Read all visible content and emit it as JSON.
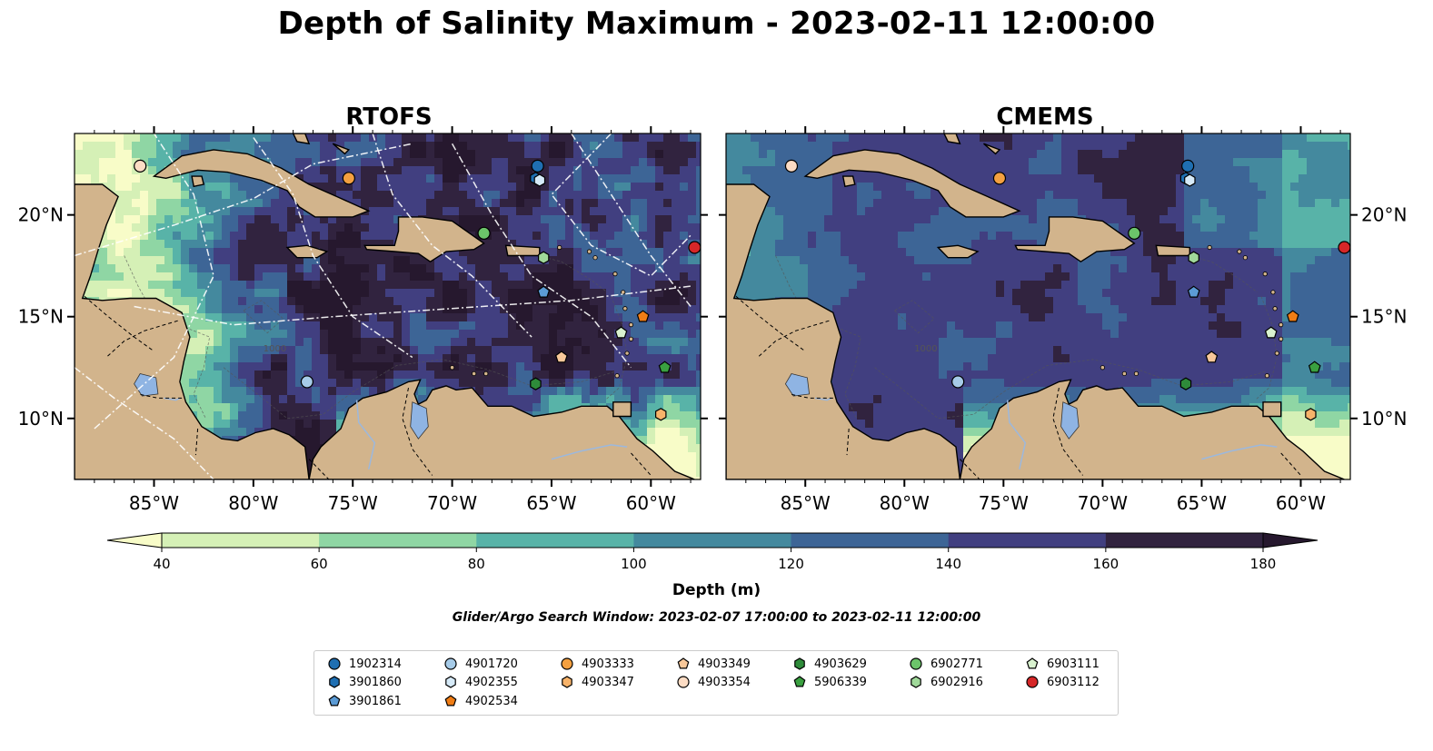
{
  "title": "Depth of Salinity Maximum - 2023-02-11 12:00:00",
  "panels": [
    {
      "title": "RTOFS"
    },
    {
      "title": "CMEMS"
    }
  ],
  "map": {
    "lon_range": [
      -89,
      -57.5
    ],
    "lat_range": [
      7,
      24
    ],
    "lon_ticks": [
      {
        "value": -85,
        "label": "85°W"
      },
      {
        "value": -80,
        "label": "80°W"
      },
      {
        "value": -75,
        "label": "75°W"
      },
      {
        "value": -70,
        "label": "70°W"
      },
      {
        "value": -65,
        "label": "65°W"
      },
      {
        "value": -60,
        "label": "60°W"
      }
    ],
    "lat_ticks": [
      {
        "value": 10,
        "label": "10°N"
      },
      {
        "value": 15,
        "label": "15°N"
      },
      {
        "value": 20,
        "label": "20°N"
      }
    ],
    "contour_label": "1000",
    "land_color": "#d2b48c",
    "lake_color": "#8fb4e3"
  },
  "colorbar": {
    "label": "Depth (m)",
    "ticks": [
      40,
      60,
      80,
      100,
      120,
      140,
      160,
      180
    ],
    "colors": [
      "#f8fcc8",
      "#d5f0b6",
      "#8fd6a4",
      "#58b3a8",
      "#44899e",
      "#3d6596",
      "#413f80",
      "#31233f",
      "#26182e"
    ]
  },
  "search_window": "Glider/Argo Search Window: 2023-02-07 17:00:00 to 2023-02-11 12:00:00",
  "floats": [
    {
      "id": "1902314",
      "color": "#1f6fb2",
      "shape": "circle",
      "lon": -65.7,
      "lat": 22.4
    },
    {
      "id": "3901860",
      "color": "#1f6fb2",
      "shape": "hexagon",
      "lon": -65.8,
      "lat": 21.8
    },
    {
      "id": "3901861",
      "color": "#5b9bd5",
      "shape": "pentagon",
      "lon": -65.4,
      "lat": 16.2
    },
    {
      "id": "4901720",
      "color": "#a6cbe8",
      "shape": "circle",
      "lon": -77.3,
      "lat": 11.8
    },
    {
      "id": "4902355",
      "color": "#d6eaf8",
      "shape": "hexagon",
      "lon": -65.6,
      "lat": 21.7
    },
    {
      "id": "4902534",
      "color": "#f07d15",
      "shape": "pentagon",
      "lon": -60.4,
      "lat": 15.0
    },
    {
      "id": "4903333",
      "color": "#f4a040",
      "shape": "circle",
      "lon": -75.2,
      "lat": 21.8
    },
    {
      "id": "4903347",
      "color": "#f7b36a",
      "shape": "hexagon",
      "lon": -59.5,
      "lat": 10.2
    },
    {
      "id": "4903349",
      "color": "#f8c89a",
      "shape": "pentagon",
      "lon": -64.5,
      "lat": 13.0
    },
    {
      "id": "4903354",
      "color": "#fcdcc4",
      "shape": "circle",
      "lon": -85.7,
      "lat": 22.4
    },
    {
      "id": "4903629",
      "color": "#2e8b3a",
      "shape": "hexagon",
      "lon": -65.8,
      "lat": 11.7
    },
    {
      "id": "5906339",
      "color": "#3aa040",
      "shape": "pentagon",
      "lon": -59.3,
      "lat": 12.5
    },
    {
      "id": "6902771",
      "color": "#6cc46a",
      "shape": "circle",
      "lon": -68.4,
      "lat": 19.1
    },
    {
      "id": "6902916",
      "color": "#a0d99a",
      "shape": "hexagon",
      "lon": -65.4,
      "lat": 17.9
    },
    {
      "id": "6903111",
      "color": "#d9f2cf",
      "shape": "pentagon",
      "lon": -61.5,
      "lat": 14.2
    },
    {
      "id": "6903112",
      "color": "#d62728",
      "shape": "circle",
      "lon": -57.8,
      "lat": 18.4
    }
  ]
}
